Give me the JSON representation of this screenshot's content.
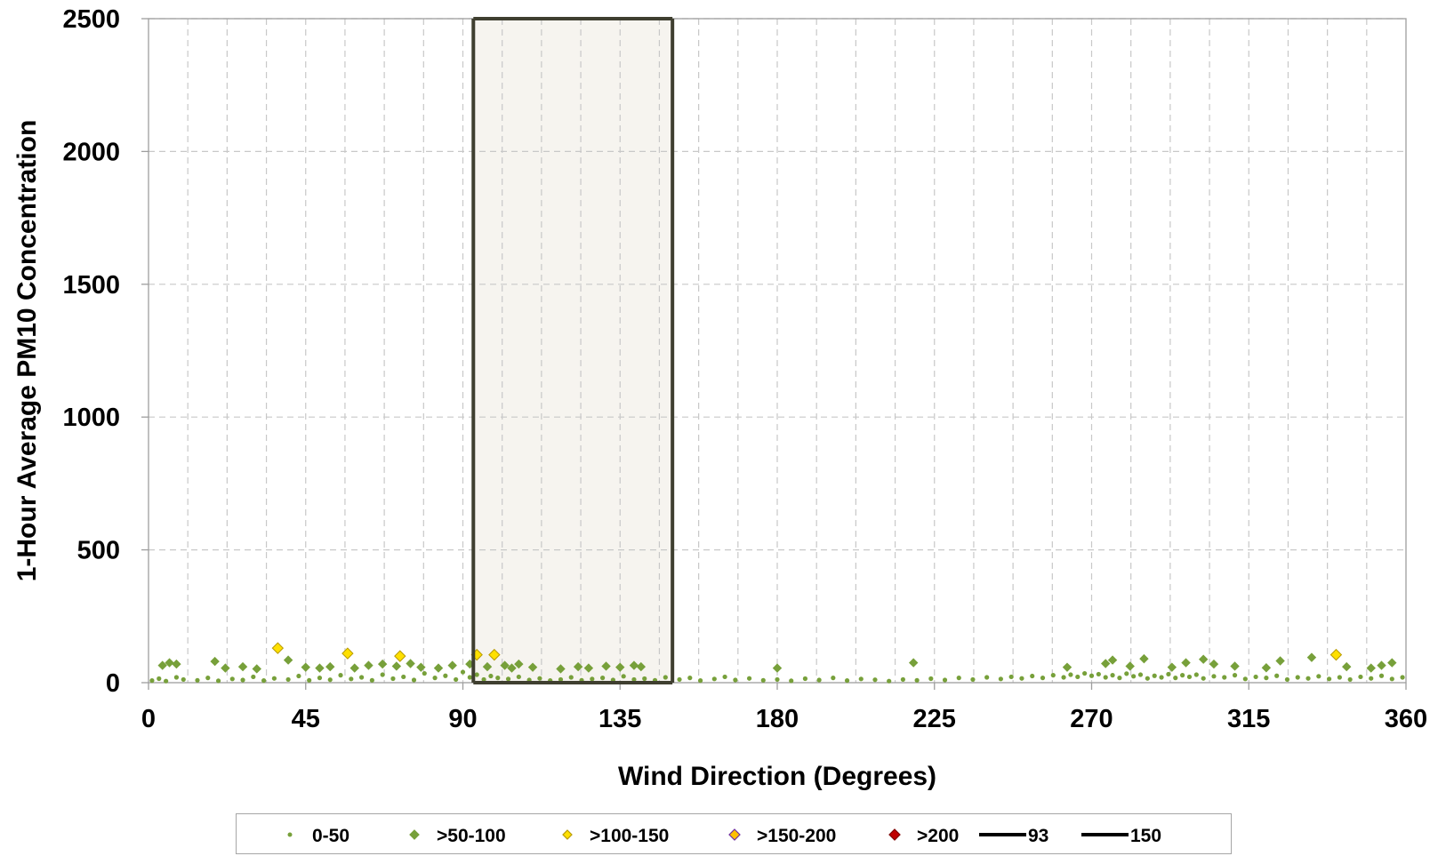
{
  "chart_data": {
    "type": "scatter",
    "title": "",
    "xlabel": "Wind Direction (Degrees)",
    "ylabel": "1-Hour Average PM10 Concentration",
    "xlim": [
      0,
      360
    ],
    "ylim": [
      0,
      2500
    ],
    "x_ticks": [
      "0",
      "45",
      "90",
      "135",
      "180",
      "225",
      "270",
      "315",
      "360"
    ],
    "y_ticks": [
      "0",
      "500",
      "1000",
      "1500",
      "2000",
      "2500"
    ],
    "grid": true,
    "legend_position": "bottom",
    "highlight_band": {
      "from": 93,
      "to": 150
    },
    "series": [
      {
        "name": "0-50",
        "color": "#77a03a",
        "marker": "dot",
        "points": [
          [
            1,
            8
          ],
          [
            3,
            15
          ],
          [
            5,
            6
          ],
          [
            8,
            20
          ],
          [
            10,
            12
          ],
          [
            14,
            9
          ],
          [
            17,
            18
          ],
          [
            20,
            7
          ],
          [
            24,
            14
          ],
          [
            27,
            10
          ],
          [
            30,
            22
          ],
          [
            33,
            8
          ],
          [
            36,
            16
          ],
          [
            40,
            12
          ],
          [
            43,
            25
          ],
          [
            46,
            9
          ],
          [
            49,
            18
          ],
          [
            52,
            11
          ],
          [
            55,
            28
          ],
          [
            58,
            14
          ],
          [
            61,
            20
          ],
          [
            64,
            9
          ],
          [
            67,
            30
          ],
          [
            70,
            15
          ],
          [
            73,
            22
          ],
          [
            76,
            10
          ],
          [
            79,
            35
          ],
          [
            82,
            18
          ],
          [
            85,
            26
          ],
          [
            88,
            12
          ],
          [
            90,
            40
          ],
          [
            92,
            20
          ],
          [
            94,
            30
          ],
          [
            96,
            12
          ],
          [
            98,
            25
          ],
          [
            100,
            18
          ],
          [
            103,
            14
          ],
          [
            106,
            22
          ],
          [
            109,
            10
          ],
          [
            112,
            16
          ],
          [
            115,
            8
          ],
          [
            118,
            12
          ],
          [
            121,
            20
          ],
          [
            124,
            9
          ],
          [
            127,
            14
          ],
          [
            130,
            18
          ],
          [
            133,
            10
          ],
          [
            136,
            24
          ],
          [
            139,
            12
          ],
          [
            142,
            15
          ],
          [
            145,
            9
          ],
          [
            148,
            20
          ],
          [
            152,
            12
          ],
          [
            155,
            18
          ],
          [
            158,
            8
          ],
          [
            162,
            14
          ],
          [
            165,
            22
          ],
          [
            168,
            10
          ],
          [
            172,
            16
          ],
          [
            176,
            9
          ],
          [
            180,
            12
          ],
          [
            184,
            7
          ],
          [
            188,
            15
          ],
          [
            192,
            10
          ],
          [
            196,
            18
          ],
          [
            200,
            8
          ],
          [
            204,
            14
          ],
          [
            208,
            11
          ],
          [
            212,
            6
          ],
          [
            216,
            12
          ],
          [
            220,
            9
          ],
          [
            224,
            15
          ],
          [
            228,
            10
          ],
          [
            232,
            18
          ],
          [
            236,
            12
          ],
          [
            240,
            20
          ],
          [
            244,
            14
          ],
          [
            247,
            22
          ],
          [
            250,
            16
          ],
          [
            253,
            25
          ],
          [
            256,
            18
          ],
          [
            259,
            28
          ],
          [
            262,
            20
          ],
          [
            264,
            30
          ],
          [
            266,
            22
          ],
          [
            268,
            35
          ],
          [
            270,
            26
          ],
          [
            272,
            32
          ],
          [
            274,
            20
          ],
          [
            276,
            28
          ],
          [
            278,
            18
          ],
          [
            280,
            34
          ],
          [
            282,
            24
          ],
          [
            284,
            30
          ],
          [
            286,
            16
          ],
          [
            288,
            26
          ],
          [
            290,
            20
          ],
          [
            292,
            32
          ],
          [
            294,
            18
          ],
          [
            296,
            28
          ],
          [
            298,
            22
          ],
          [
            300,
            30
          ],
          [
            302,
            16
          ],
          [
            305,
            24
          ],
          [
            308,
            20
          ],
          [
            311,
            28
          ],
          [
            314,
            14
          ],
          [
            317,
            22
          ],
          [
            320,
            18
          ],
          [
            323,
            26
          ],
          [
            326,
            12
          ],
          [
            329,
            20
          ],
          [
            332,
            16
          ],
          [
            335,
            24
          ],
          [
            338,
            14
          ],
          [
            341,
            20
          ],
          [
            344,
            12
          ],
          [
            347,
            22
          ],
          [
            350,
            16
          ],
          [
            353,
            26
          ],
          [
            356,
            14
          ],
          [
            359,
            20
          ]
        ]
      },
      {
        "name": ">50-100",
        "color": "#77a03a",
        "marker": "diamond",
        "points": [
          [
            4,
            65
          ],
          [
            6,
            75
          ],
          [
            8,
            70
          ],
          [
            19,
            80
          ],
          [
            22,
            55
          ],
          [
            27,
            60
          ],
          [
            31,
            52
          ],
          [
            40,
            85
          ],
          [
            45,
            58
          ],
          [
            49,
            55
          ],
          [
            52,
            60
          ],
          [
            59,
            55
          ],
          [
            63,
            65
          ],
          [
            67,
            70
          ],
          [
            71,
            62
          ],
          [
            75,
            72
          ],
          [
            78,
            58
          ],
          [
            83,
            55
          ],
          [
            87,
            65
          ],
          [
            92,
            70
          ],
          [
            97,
            60
          ],
          [
            102,
            65
          ],
          [
            104,
            55
          ],
          [
            106,
            70
          ],
          [
            110,
            58
          ],
          [
            118,
            52
          ],
          [
            123,
            60
          ],
          [
            126,
            55
          ],
          [
            131,
            62
          ],
          [
            135,
            58
          ],
          [
            139,
            65
          ],
          [
            141,
            60
          ],
          [
            180,
            55
          ],
          [
            219,
            75
          ],
          [
            263,
            58
          ],
          [
            274,
            72
          ],
          [
            276,
            85
          ],
          [
            281,
            62
          ],
          [
            285,
            90
          ],
          [
            293,
            58
          ],
          [
            297,
            75
          ],
          [
            302,
            88
          ],
          [
            305,
            70
          ],
          [
            311,
            62
          ],
          [
            320,
            56
          ],
          [
            324,
            82
          ],
          [
            333,
            95
          ],
          [
            343,
            60
          ],
          [
            350,
            55
          ],
          [
            353,
            65
          ],
          [
            356,
            75
          ]
        ]
      },
      {
        "name": ">100-150",
        "color": "#ffe000",
        "marker": "diamond",
        "points": [
          [
            37,
            130
          ],
          [
            57,
            110
          ],
          [
            72,
            100
          ],
          [
            94,
            105
          ],
          [
            99,
            105
          ],
          [
            340,
            105
          ]
        ]
      },
      {
        "name": ">150-200",
        "color": "#ffc000",
        "marker": "diamond",
        "points": []
      },
      {
        "name": ">200",
        "color": "#c00000",
        "marker": "diamond",
        "points": []
      },
      {
        "name": "93",
        "color": "#000000",
        "marker": "line",
        "points": []
      },
      {
        "name": "150",
        "color": "#000000",
        "marker": "line",
        "points": []
      }
    ]
  }
}
